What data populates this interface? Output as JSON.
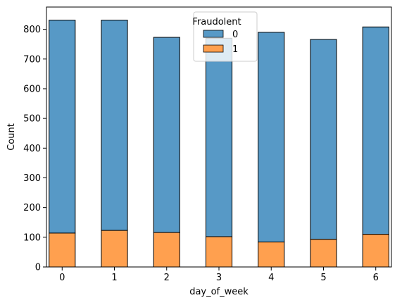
{
  "chart_data": {
    "type": "bar",
    "stacked": true,
    "x": [
      0,
      1,
      2,
      3,
      4,
      5,
      6
    ],
    "xticks": [
      "0",
      "1",
      "2",
      "3",
      "4",
      "5",
      "6"
    ],
    "yticks": [
      "0",
      "100",
      "200",
      "300",
      "400",
      "500",
      "600",
      "700",
      "800"
    ],
    "xlabel": "day_of_week",
    "ylabel": "Count",
    "xlim": [
      -0.3,
      6.3
    ],
    "ylim": [
      0,
      875
    ],
    "series": [
      {
        "name": "0",
        "color": "#5799c6",
        "totals": [
          831,
          831,
          773,
          770,
          790,
          766,
          808
        ]
      },
      {
        "name": "1",
        "color": "#ffa04f",
        "values": [
          114,
          123,
          116,
          102,
          84,
          93,
          110
        ]
      }
    ],
    "legend": {
      "title": "Fraudolent",
      "placement": "top-center"
    },
    "grid": false
  }
}
